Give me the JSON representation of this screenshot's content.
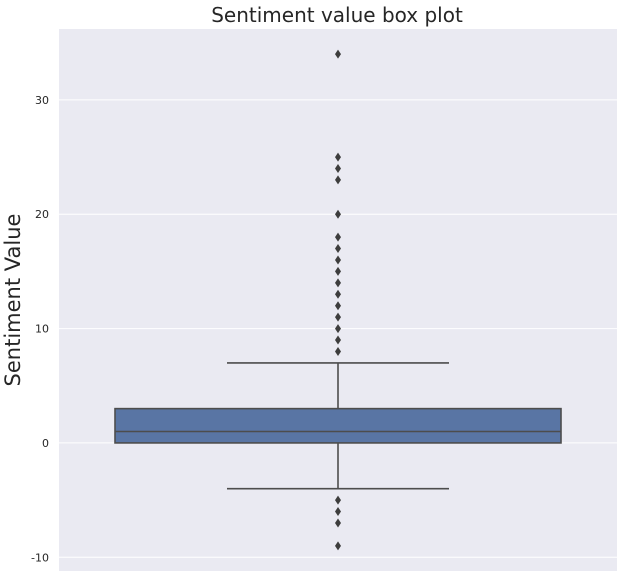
{
  "chart_data": {
    "type": "box",
    "title": "Sentiment value box plot",
    "xlabel": "",
    "ylabel": "Sentiment Value",
    "ylim": [
      -11.2,
      36.2
    ],
    "yticks": [
      -10,
      0,
      10,
      20,
      30
    ],
    "grid": true,
    "box": {
      "q1": 0,
      "median": 1,
      "q3": 3,
      "whisker_low": -4,
      "whisker_high": 7
    },
    "outliers": [
      -9,
      -7,
      -6,
      -5,
      8,
      9,
      10,
      11,
      12,
      13,
      14,
      15,
      16,
      17,
      18,
      20,
      23,
      24,
      25,
      34
    ],
    "colors": {
      "background": "#eaeaf2",
      "box_fill": "#5975a4",
      "line": "#4d4d4d",
      "grid": "#ffffff"
    }
  }
}
